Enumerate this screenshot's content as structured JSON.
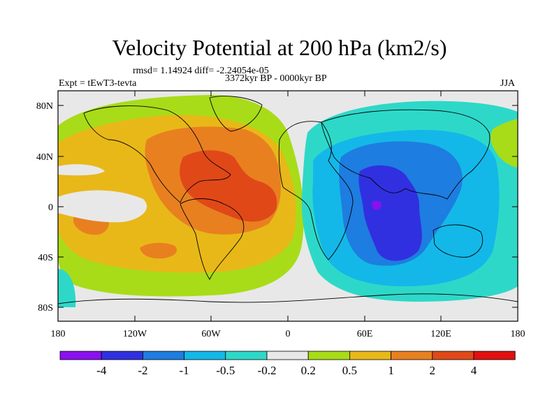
{
  "title": "Velocity Potential at 200 hPa (km2/s)",
  "stats": "rmsd= 1.14924 diff= -2.24054e-05",
  "experiment": "Expt = tEwT3-tevta",
  "period": "3372kyr BP - 0000kyr BP",
  "season": "JJA",
  "lat_ticks": [
    "80N",
    "40N",
    "0",
    "40S",
    "80S"
  ],
  "lon_ticks": [
    "180",
    "120W",
    "60W",
    "0",
    "60E",
    "120E",
    "180"
  ],
  "colorbar": {
    "labels": [
      "-4",
      "-2",
      "-1",
      "-0.5",
      "-0.2",
      "0.2",
      "0.5",
      "1",
      "2",
      "4"
    ],
    "colors": [
      "#8a10f0",
      "#3030e0",
      "#1e7de0",
      "#13b8e8",
      "#2ed8c8",
      "#e8e8e8",
      "#a8dc18",
      "#e8b818",
      "#e88020",
      "#e04818",
      "#e01010"
    ]
  }
}
